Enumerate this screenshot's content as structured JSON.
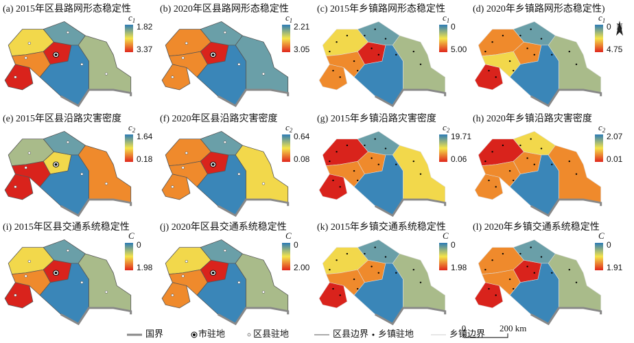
{
  "panels": [
    {
      "title": "(a) 2015年区县路网形态稳定性",
      "symbol": {
        "letter": "c",
        "sub": "1"
      },
      "top": "1.82",
      "bottom": "3.37",
      "level": "county"
    },
    {
      "title": "(b) 2020年区县路网形态稳定性",
      "symbol": {
        "letter": "c",
        "sub": "1"
      },
      "top": "2.21",
      "bottom": "3.05",
      "level": "county"
    },
    {
      "title": "(c) 2015年乡镇路网形态稳定性",
      "symbol": {
        "letter": "c",
        "sub": "1"
      },
      "top": "0",
      "bottom": "5.00",
      "level": "township"
    },
    {
      "title": "(d) 2020年乡镇路网形态稳定性)",
      "symbol": {
        "letter": "c",
        "sub": "1"
      },
      "top": "0",
      "bottom": "4.75",
      "level": "township"
    },
    {
      "title": "(e) 2015年区县沿路灾害密度",
      "symbol": {
        "letter": "c",
        "sub": "2"
      },
      "top": "1.64",
      "bottom": "0.18",
      "level": "county"
    },
    {
      "title": "(f) 2020年区县沿路灾害密度",
      "symbol": {
        "letter": "c",
        "sub": "2"
      },
      "top": "0.64",
      "bottom": "0.08",
      "level": "county"
    },
    {
      "title": "(g) 2015年乡镇沿路灾害密度",
      "symbol": {
        "letter": "c",
        "sub": "2"
      },
      "top": "19.71",
      "bottom": "0.06",
      "level": "township"
    },
    {
      "title": "(h) 2020年乡镇沿路灾害密度",
      "symbol": {
        "letter": "c",
        "sub": "2"
      },
      "top": "2.07",
      "bottom": "0.01",
      "level": "township"
    },
    {
      "title": "(i) 2015年区县交通系统稳定性",
      "symbol": {
        "letter": "C"
      },
      "top": "0",
      "bottom": "1.98",
      "level": "county"
    },
    {
      "title": "(j) 2020年区县交通系统稳定性",
      "symbol": {
        "letter": "C"
      },
      "top": "0",
      "bottom": "2.00",
      "level": "county"
    },
    {
      "title": "(k) 2015年乡镇交通系统稳定性",
      "symbol": {
        "letter": "C"
      },
      "top": "0",
      "bottom": "1.98",
      "level": "township"
    },
    {
      "title": "(l) 2020年乡镇交通系统稳定性",
      "symbol": {
        "letter": "C"
      },
      "top": "0",
      "bottom": "1.91",
      "level": "township"
    }
  ],
  "legend": [
    "国界",
    "市驻地",
    "区县驻地",
    "区县边界",
    "乡镇驻地",
    "乡镇边界"
  ],
  "scale_bar": {
    "start": "0",
    "end": "200 km"
  },
  "north": "N"
}
